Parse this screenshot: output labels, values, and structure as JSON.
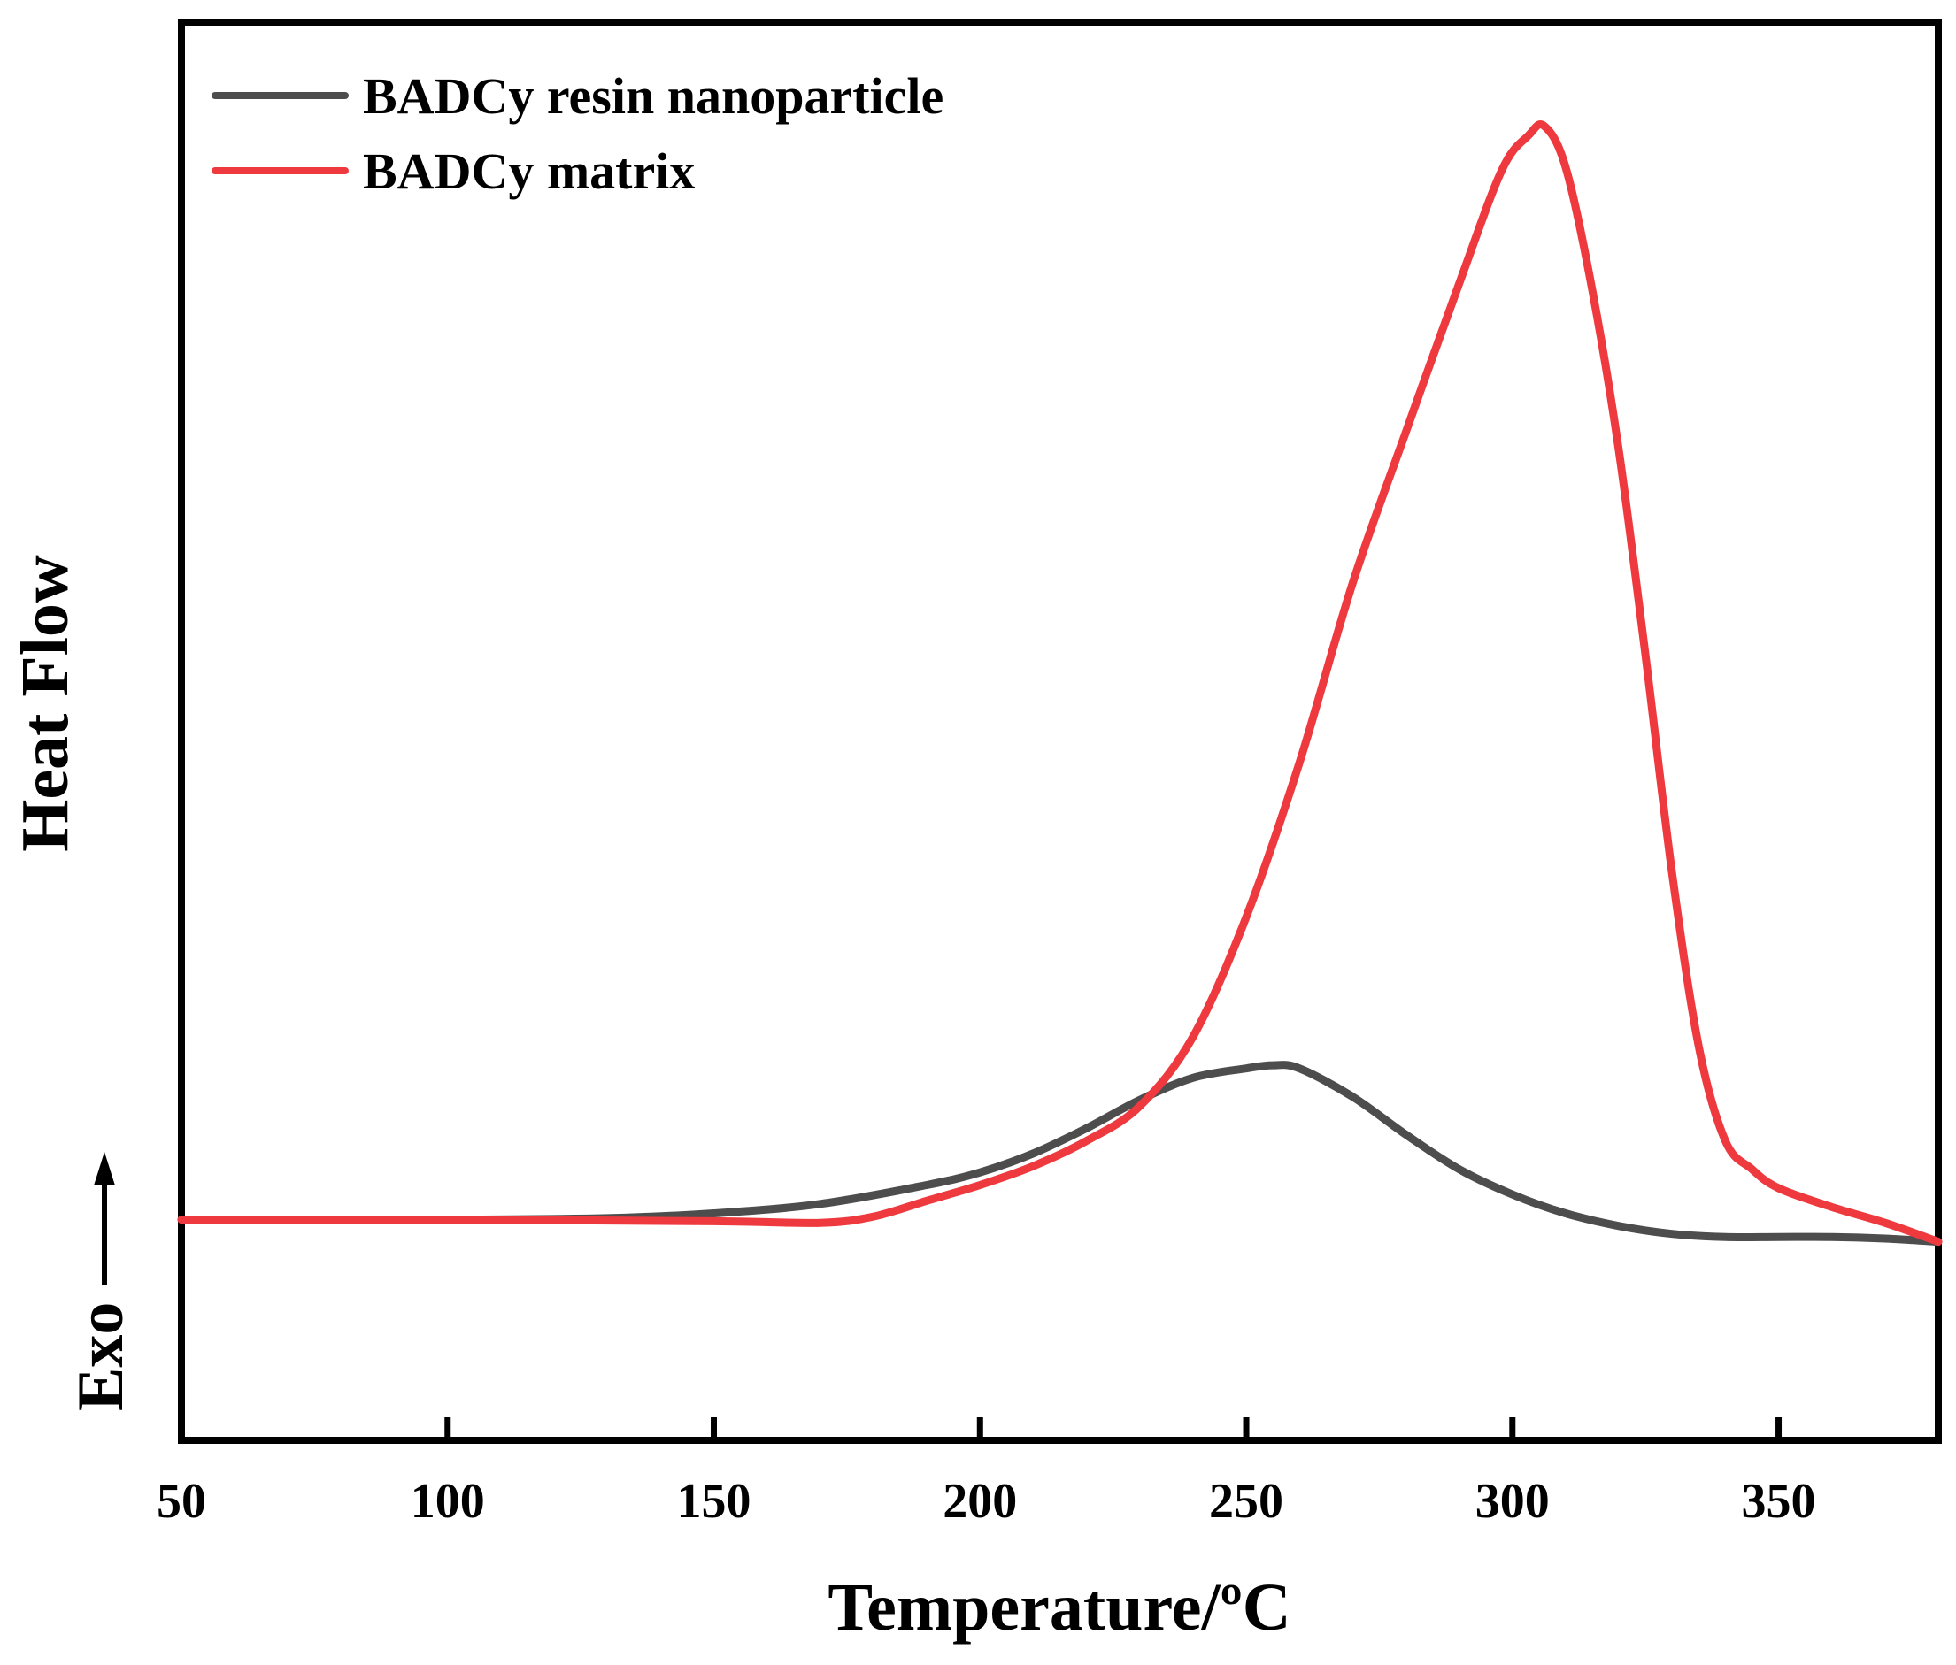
{
  "chart_data": {
    "type": "line",
    "title": "",
    "xlabel": "Temperature/ºC",
    "ylabel": "Heat Flow",
    "exo_label": "Exo",
    "xlim": [
      50,
      380
    ],
    "ylim": [
      -0.7,
      3.8
    ],
    "x_ticks": [
      50,
      100,
      150,
      200,
      250,
      300,
      350
    ],
    "grid": false,
    "legend_position": "top-left",
    "series": [
      {
        "name": "BADCy resin nanoparticle",
        "color": "#4d4d4d",
        "points": [
          [
            50,
            0
          ],
          [
            100,
            0
          ],
          [
            130,
            0.005
          ],
          [
            150,
            0.02
          ],
          [
            170,
            0.05
          ],
          [
            190,
            0.11
          ],
          [
            200,
            0.15
          ],
          [
            210,
            0.21
          ],
          [
            220,
            0.29
          ],
          [
            230,
            0.38
          ],
          [
            240,
            0.45
          ],
          [
            250,
            0.48
          ],
          [
            255,
            0.49
          ],
          [
            260,
            0.48
          ],
          [
            270,
            0.39
          ],
          [
            280,
            0.27
          ],
          [
            290,
            0.16
          ],
          [
            300,
            0.08
          ],
          [
            310,
            0.02
          ],
          [
            320,
            -0.02
          ],
          [
            330,
            -0.045
          ],
          [
            340,
            -0.055
          ],
          [
            350,
            -0.055
          ],
          [
            360,
            -0.055
          ],
          [
            370,
            -0.06
          ],
          [
            380,
            -0.07
          ]
        ]
      },
      {
        "name": "BADCy matrix",
        "color": "#ee3a3f",
        "points": [
          [
            50,
            0
          ],
          [
            100,
            0
          ],
          [
            150,
            -0.005
          ],
          [
            170,
            -0.01
          ],
          [
            180,
            0.01
          ],
          [
            190,
            0.06
          ],
          [
            200,
            0.11
          ],
          [
            210,
            0.17
          ],
          [
            220,
            0.25
          ],
          [
            230,
            0.36
          ],
          [
            240,
            0.58
          ],
          [
            250,
            0.96
          ],
          [
            260,
            1.45
          ],
          [
            270,
            2.02
          ],
          [
            280,
            2.5
          ],
          [
            290,
            2.97
          ],
          [
            298,
            3.33
          ],
          [
            303,
            3.44
          ],
          [
            306,
            3.47
          ],
          [
            310,
            3.34
          ],
          [
            315,
            2.95
          ],
          [
            320,
            2.44
          ],
          [
            325,
            1.79
          ],
          [
            330,
            1.1
          ],
          [
            335,
            0.55
          ],
          [
            340,
            0.25
          ],
          [
            345,
            0.16
          ],
          [
            350,
            0.1
          ],
          [
            360,
            0.04
          ],
          [
            370,
            -0.01
          ],
          [
            380,
            -0.07
          ]
        ]
      }
    ]
  }
}
